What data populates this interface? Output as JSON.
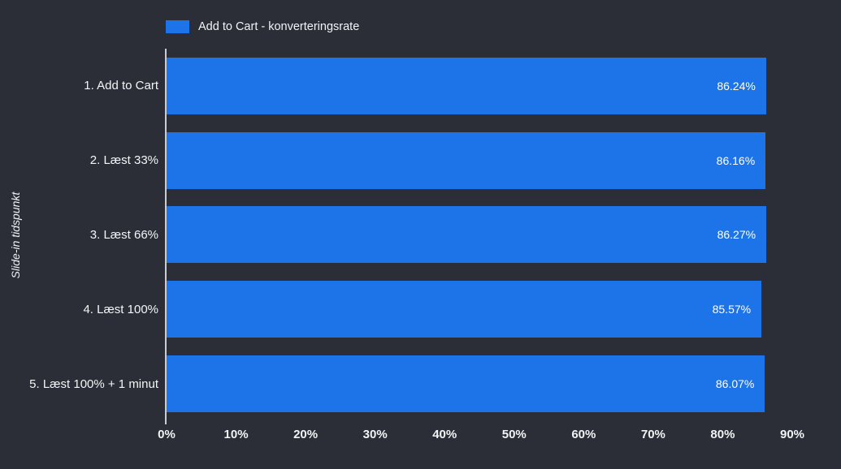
{
  "chart_data": {
    "type": "bar",
    "orientation": "horizontal",
    "title": "",
    "xlabel": "",
    "ylabel": "Slide-in tidspunkt",
    "legend": [
      "Add to Cart - konverteringsrate"
    ],
    "legend_position": "top",
    "grid": false,
    "categories": [
      "1. Add to Cart",
      "2. Læst 33%",
      "3. Læst 66%",
      "4. Læst 100%",
      "5. Læst 100% + 1 minut"
    ],
    "values": [
      86.24,
      86.16,
      86.27,
      85.57,
      86.07
    ],
    "value_labels": [
      "86.24%",
      "86.16%",
      "86.27%",
      "85.57%",
      "86.07%"
    ],
    "xlim": [
      0,
      90
    ],
    "x_ticks": [
      "0%",
      "10%",
      "20%",
      "30%",
      "40%",
      "50%",
      "60%",
      "70%",
      "80%",
      "90%"
    ],
    "colors": {
      "bar": "#1d74e8",
      "background": "#2b2e37",
      "text": "#f2f3f5",
      "axis_line": "#c9ccd1"
    }
  }
}
